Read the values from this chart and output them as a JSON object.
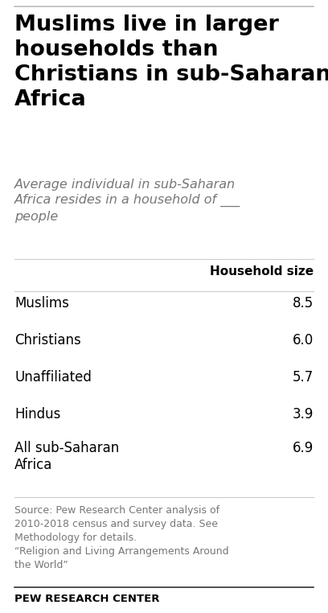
{
  "title": "Muslims live in larger\nhouseholds than\nChristians in sub-Saharan\nAfrica",
  "subtitle": "Average individual in sub-Saharan\nAfrica resides in a household of ___\npeople",
  "column_header": "Household size",
  "rows": [
    {
      "label": "Muslims",
      "value": "8.5"
    },
    {
      "label": "Christians",
      "value": "6.0"
    },
    {
      "label": "Unaffiliated",
      "value": "5.7"
    },
    {
      "label": "Hindus",
      "value": "3.9"
    },
    {
      "label": "All sub-Saharan\nAfrica",
      "value": "6.9"
    }
  ],
  "source_text": "Source: Pew Research Center analysis of\n2010-2018 census and survey data. See\nMethodology for details.\n“Religion and Living Arrangements Around\nthe World”",
  "footer": "PEW RESEARCH CENTER",
  "bg_color": "#ffffff",
  "title_color": "#000000",
  "subtitle_color": "#777777",
  "table_label_color": "#000000",
  "table_value_color": "#000000",
  "source_color": "#777777",
  "footer_color": "#000000",
  "divider_color": "#cccccc",
  "top_line_color": "#bbbbbb",
  "footer_line_color": "#333333"
}
